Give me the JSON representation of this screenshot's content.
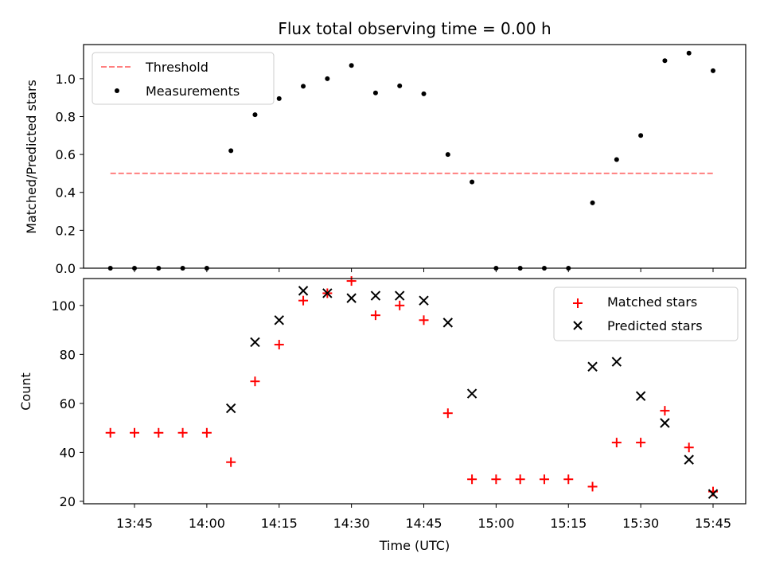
{
  "chart_data": [
    {
      "type": "scatter",
      "title": "Flux total observing time = 0.00 h",
      "xlabel": "",
      "ylabel": "Matched/Predicted stars",
      "ylim": [
        0,
        1.18
      ],
      "yticks": [
        "0.0",
        "0.2",
        "0.4",
        "0.6",
        "0.8",
        "1.0"
      ],
      "x": [
        "13:40",
        "13:45",
        "13:50",
        "13:55",
        "14:00",
        "14:05",
        "14:10",
        "14:15",
        "14:20",
        "14:25",
        "14:30",
        "14:35",
        "14:40",
        "14:45",
        "14:50",
        "14:55",
        "15:00",
        "15:05",
        "15:10",
        "15:15",
        "15:20",
        "15:25",
        "15:30",
        "15:35",
        "15:40",
        "15:45"
      ],
      "threshold": {
        "name": "Threshold",
        "value": 0.5,
        "x_start": "13:40",
        "x_end": "15:45",
        "color": "#ff7f7f"
      },
      "series": [
        {
          "name": "Measurements",
          "color": "#000000",
          "values": [
            0,
            0,
            0,
            0,
            0,
            0.62,
            0.81,
            0.895,
            0.96,
            1.0,
            1.07,
            0.925,
            0.962,
            0.92,
            0.6,
            0.455,
            0,
            0,
            0,
            0,
            0.345,
            0.573,
            0.7,
            1.095,
            1.135,
            1.042
          ]
        }
      ],
      "legend": "top-left"
    },
    {
      "type": "scatter",
      "title": "",
      "xlabel": "Time (UTC)",
      "ylabel": "Count",
      "ylim": [
        19,
        111
      ],
      "yticks": [
        "20",
        "40",
        "60",
        "80",
        "100"
      ],
      "xticks": [
        "13:45",
        "14:00",
        "14:15",
        "14:30",
        "14:45",
        "15:00",
        "15:15",
        "15:30",
        "15:45"
      ],
      "x": [
        "13:40",
        "13:45",
        "13:50",
        "13:55",
        "14:00",
        "14:05",
        "14:10",
        "14:15",
        "14:20",
        "14:25",
        "14:30",
        "14:35",
        "14:40",
        "14:45",
        "14:50",
        "14:55",
        "15:00",
        "15:05",
        "15:10",
        "15:15",
        "15:20",
        "15:25",
        "15:30",
        "15:35",
        "15:40",
        "15:45"
      ],
      "series": [
        {
          "name": "Matched stars",
          "marker": "plus",
          "color": "#ff0000",
          "values": [
            48,
            48,
            48,
            48,
            48,
            36,
            69,
            84,
            102,
            105,
            110,
            96,
            100,
            94,
            56,
            29,
            29,
            29,
            29,
            29,
            26,
            44,
            44,
            57,
            42,
            24
          ]
        },
        {
          "name": "Predicted stars",
          "marker": "x",
          "color": "#000000",
          "values": [
            null,
            null,
            null,
            null,
            null,
            58,
            85,
            94,
            106,
            105,
            103,
            104,
            104,
            102,
            93,
            64,
            null,
            null,
            null,
            null,
            75,
            77,
            63,
            52,
            37,
            23
          ]
        }
      ],
      "legend": "top-right"
    }
  ]
}
